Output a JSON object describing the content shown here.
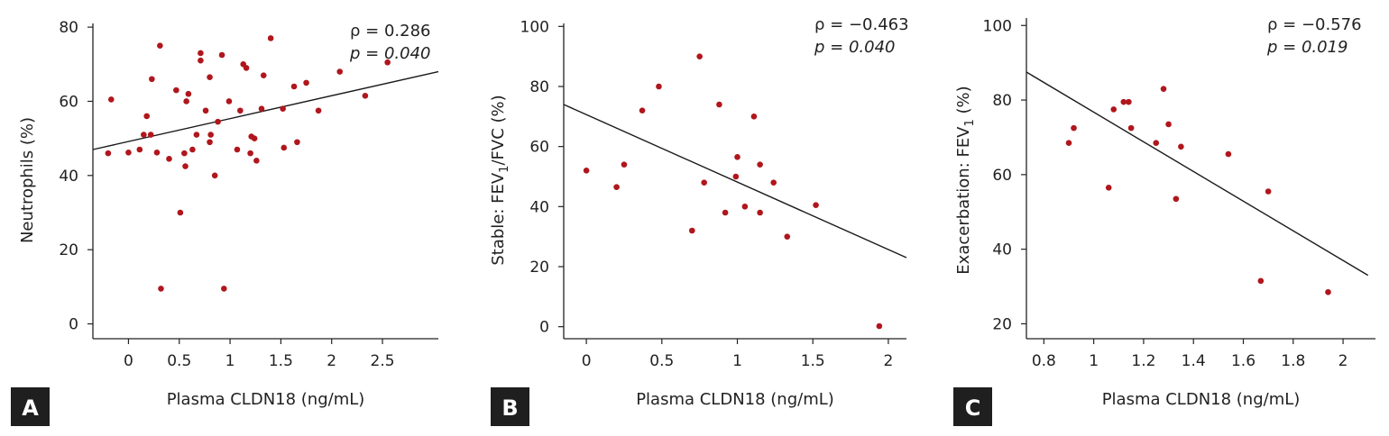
{
  "chart_data": [
    {
      "type": "scatter",
      "panel_label": "A",
      "xlabel": "Plasma CLDN18 (ng/mL)",
      "ylabel": "Neutrophils (%)",
      "xlim": [
        -0.35,
        3.05
      ],
      "ylim": [
        -4,
        81
      ],
      "xticks": [
        0,
        0.5,
        1,
        1.5,
        2,
        2.5
      ],
      "yticks": [
        0,
        20,
        40,
        60,
        80
      ],
      "grid": false,
      "annotation": {
        "rho": "ρ = 0.286",
        "p": "p = 0.040"
      },
      "fit_line": {
        "x": [
          -0.35,
          3.05
        ],
        "y": [
          47,
          68
        ]
      },
      "points": [
        [
          -0.2,
          46
        ],
        [
          -0.17,
          60.5
        ],
        [
          0.0,
          46.2
        ],
        [
          0.11,
          47
        ],
        [
          0.15,
          51
        ],
        [
          0.18,
          56
        ],
        [
          0.22,
          51
        ],
        [
          0.23,
          66
        ],
        [
          0.28,
          46.2
        ],
        [
          0.31,
          75
        ],
        [
          0.32,
          9.5
        ],
        [
          0.4,
          44.5
        ],
        [
          0.47,
          63
        ],
        [
          0.51,
          30
        ],
        [
          0.55,
          46
        ],
        [
          0.56,
          42.5
        ],
        [
          0.57,
          60
        ],
        [
          0.59,
          62
        ],
        [
          0.63,
          47
        ],
        [
          0.67,
          51
        ],
        [
          0.71,
          73
        ],
        [
          0.71,
          71
        ],
        [
          0.76,
          57.5
        ],
        [
          0.8,
          66.5
        ],
        [
          0.8,
          49
        ],
        [
          0.81,
          51
        ],
        [
          0.85,
          40
        ],
        [
          0.88,
          54.5
        ],
        [
          0.92,
          72.5
        ],
        [
          0.94,
          9.5
        ],
        [
          0.99,
          60
        ],
        [
          1.07,
          47
        ],
        [
          1.1,
          57.5
        ],
        [
          1.13,
          70
        ],
        [
          1.16,
          69
        ],
        [
          1.2,
          46
        ],
        [
          1.21,
          50.5
        ],
        [
          1.24,
          50
        ],
        [
          1.26,
          44
        ],
        [
          1.31,
          58
        ],
        [
          1.33,
          67
        ],
        [
          1.4,
          77
        ],
        [
          1.52,
          58
        ],
        [
          1.53,
          47.5
        ],
        [
          1.63,
          64
        ],
        [
          1.66,
          49
        ],
        [
          1.75,
          65
        ],
        [
          1.87,
          57.5
        ],
        [
          2.08,
          68
        ],
        [
          2.33,
          61.5
        ],
        [
          2.55,
          70.5
        ]
      ]
    },
    {
      "type": "scatter",
      "panel_label": "B",
      "xlabel": "Plasma CLDN18 (ng/mL)",
      "ylabel_main": "Stable: FEV",
      "ylabel_sub": "1",
      "ylabel_rest": "/FVC (%)",
      "xlim": [
        -0.15,
        2.12
      ],
      "ylim": [
        -4,
        101
      ],
      "xticks": [
        0,
        0.5,
        1,
        1.5,
        2
      ],
      "yticks": [
        0,
        20,
        40,
        60,
        80,
        100
      ],
      "grid": false,
      "annotation": {
        "rho": "ρ = −0.463",
        "p": "p = 0.040"
      },
      "fit_line": {
        "x": [
          -0.15,
          2.12
        ],
        "y": [
          74,
          23
        ]
      },
      "points": [
        [
          0.0,
          52
        ],
        [
          0.2,
          46.5
        ],
        [
          0.25,
          54
        ],
        [
          0.37,
          72
        ],
        [
          0.48,
          80
        ],
        [
          0.7,
          32
        ],
        [
          0.75,
          90
        ],
        [
          0.78,
          48
        ],
        [
          0.88,
          74
        ],
        [
          0.92,
          38
        ],
        [
          0.99,
          50
        ],
        [
          1.0,
          56.5
        ],
        [
          1.05,
          40
        ],
        [
          1.11,
          70
        ],
        [
          1.15,
          54
        ],
        [
          1.15,
          38
        ],
        [
          1.24,
          48
        ],
        [
          1.33,
          30
        ],
        [
          1.52,
          40.5
        ],
        [
          1.94,
          0.2
        ]
      ]
    },
    {
      "type": "scatter",
      "panel_label": "C",
      "xlabel": "Plasma CLDN18 (ng/mL)",
      "ylabel_main": "Exacerbation: FEV",
      "ylabel_sub": "1",
      "ylabel_rest": " (%)",
      "xlim": [
        0.73,
        2.13
      ],
      "ylim": [
        16,
        102
      ],
      "xticks": [
        0.8,
        1,
        1.2,
        1.4,
        1.6,
        1.8,
        2
      ],
      "yticks": [
        20,
        40,
        60,
        80,
        100
      ],
      "grid": false,
      "annotation": {
        "rho": "ρ = −0.576",
        "p": "p = 0.019"
      },
      "fit_line": {
        "x": [
          0.73,
          2.1
        ],
        "y": [
          87.5,
          33
        ]
      },
      "points": [
        [
          0.9,
          68.5
        ],
        [
          0.92,
          72.5
        ],
        [
          1.06,
          56.5
        ],
        [
          1.08,
          77.5
        ],
        [
          1.12,
          79.5
        ],
        [
          1.14,
          79.5
        ],
        [
          1.15,
          72.5
        ],
        [
          1.25,
          68.5
        ],
        [
          1.28,
          83
        ],
        [
          1.3,
          73.5
        ],
        [
          1.33,
          53.5
        ],
        [
          1.35,
          67.5
        ],
        [
          1.54,
          65.5
        ],
        [
          1.67,
          31.5
        ],
        [
          1.7,
          55.5
        ],
        [
          1.94,
          28.5
        ]
      ]
    }
  ]
}
